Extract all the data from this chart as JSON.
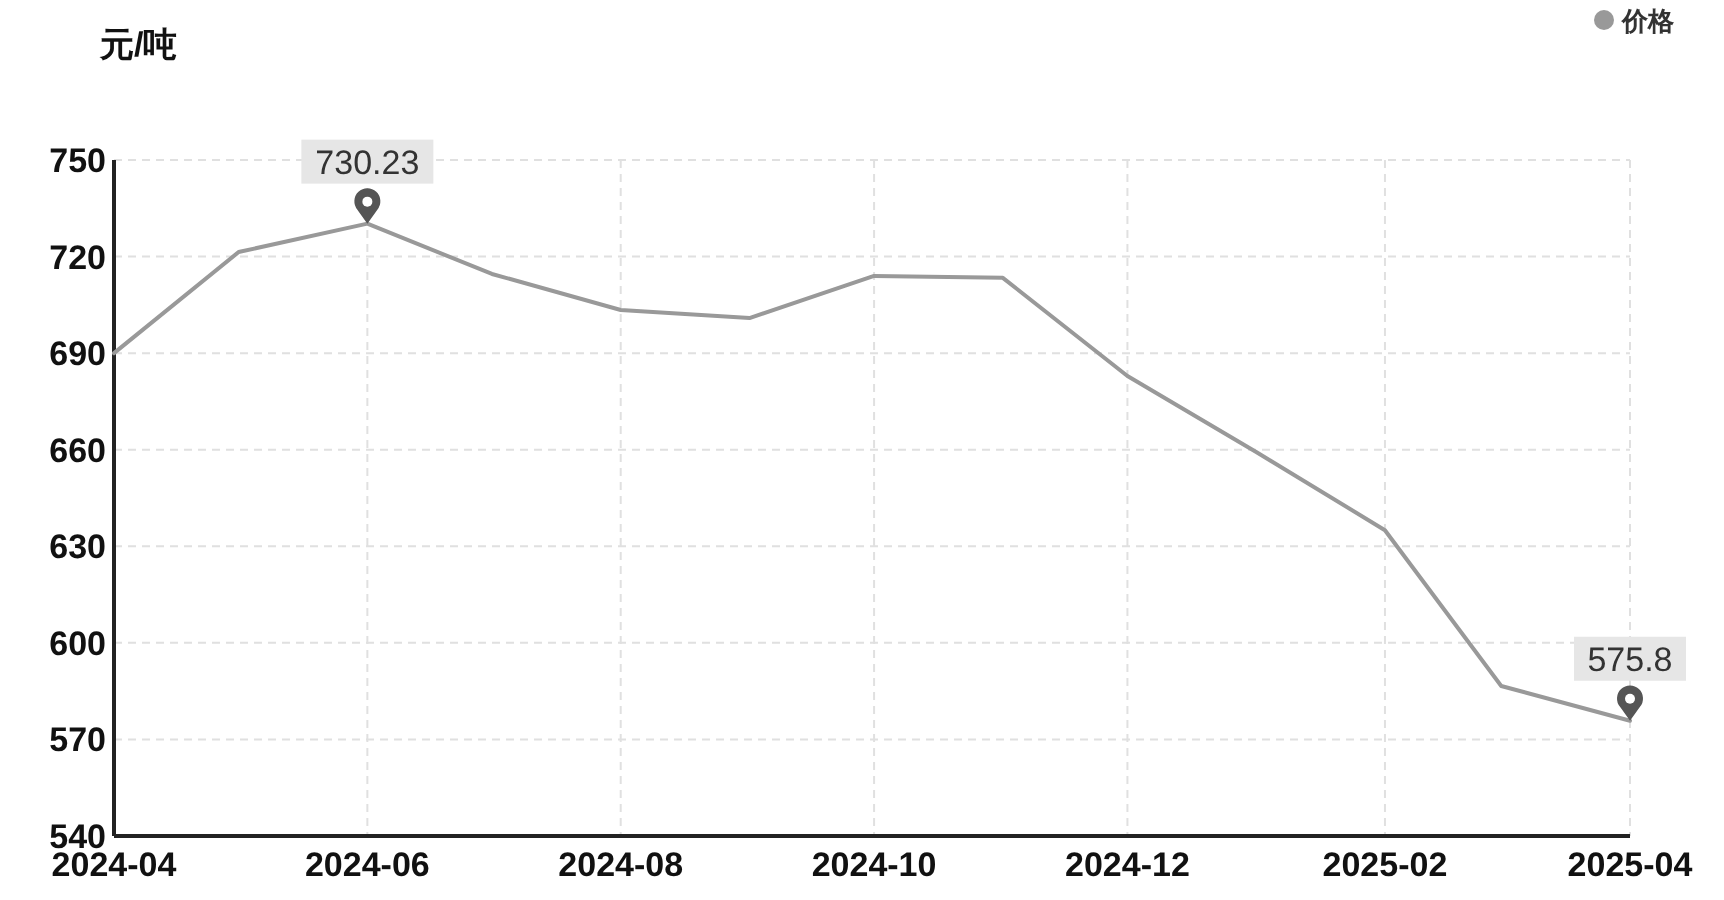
{
  "chart_data": {
    "type": "line",
    "ylabel": "元/吨",
    "legend": "top right",
    "grid": true,
    "marker": "none",
    "line_style": "solid",
    "x": [
      "2024-04",
      "2024-05",
      "2024-06",
      "2024-07",
      "2024-08",
      "2024-09",
      "2024-10",
      "2024-11",
      "2024-12",
      "2025-01",
      "2025-02",
      "2025-03",
      "2025-04"
    ],
    "series": [
      {
        "name": "价格",
        "color": "#999999",
        "values": [
          690,
          721.4,
          730.23,
          714.6,
          703.4,
          700.9,
          714,
          713.4,
          682.9,
          659.3,
          635,
          586.6,
          575.8
        ]
      }
    ],
    "xlim": [
      "2024-04",
      "2025-04"
    ],
    "xticks": [
      "2024-04",
      "2024-06",
      "2024-08",
      "2024-10",
      "2024-12",
      "2025-02",
      "2025-04"
    ],
    "ylim": [
      540,
      750
    ],
    "yticks": [
      540,
      570,
      600,
      630,
      660,
      690,
      720,
      750
    ],
    "annotations": [
      {
        "text": "730.23",
        "x": "2024-06",
        "y": 730.23
      },
      {
        "text": "575.8",
        "x": "2025-04",
        "y": 575.8
      }
    ]
  }
}
